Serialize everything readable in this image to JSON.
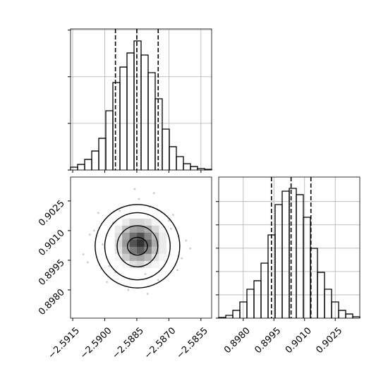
{
  "chart_data": [
    {
      "type": "histogram",
      "color": "#000000",
      "grid": true,
      "xtick_labels": false,
      "ytick_labels": false,
      "bins": [
        -2.5916,
        -2.59127,
        -2.59094,
        -2.59061,
        -2.59028,
        -2.58995,
        -2.58962,
        -2.58929,
        -2.58896,
        -2.58863,
        -2.5883,
        -2.58797,
        -2.58764,
        -2.58731,
        -2.58698,
        -2.58665,
        -2.58632,
        -2.58599,
        -2.58566,
        -2.58533,
        -2.585
      ],
      "values": [
        24,
        48,
        91,
        163,
        272,
        508,
        750,
        883,
        1004,
        1107,
        986,
        835,
        611,
        351,
        200,
        115,
        54,
        30,
        12,
        6
      ],
      "quantiles": [
        -2.5895,
        -2.5885,
        -2.5875
      ],
      "xlim": [
        -2.5916,
        -2.585
      ],
      "ylim": [
        0,
        1210
      ],
      "xticks": [
        -2.5915,
        -2.59,
        -2.5885,
        -2.587,
        -2.5855
      ],
      "yticks": [
        0,
        400,
        800,
        1200
      ]
    },
    {
      "type": "density2d",
      "point_color": "#999999",
      "xlim": [
        -2.5916,
        -2.585
      ],
      "ylim": [
        0.89657,
        0.90371
      ],
      "xticks": [
        {
          "value": -2.5915,
          "label": "−2.5915"
        },
        {
          "value": -2.59,
          "label": "−2.5900"
        },
        {
          "value": -2.5885,
          "label": "−2.5885"
        },
        {
          "value": -2.587,
          "label": "−2.5870"
        },
        {
          "value": -2.5855,
          "label": "−2.5855"
        }
      ],
      "yticks": [
        {
          "value": 0.898,
          "label": "0.8980"
        },
        0.8995,
        {
          "value": 0.901,
          "label": "0.9010"
        },
        0.9025
      ],
      "scatter": {
        "x": [
          -2.5905,
          -2.5898,
          -2.587,
          -2.5866,
          -2.5901,
          -2.5875,
          -2.5893,
          -2.5879,
          -2.591,
          -2.5862,
          -2.5889,
          -2.5884,
          -2.5896,
          -2.5872,
          -2.5907,
          -2.5868,
          -2.5881,
          -2.5899,
          -2.5877,
          -2.5892,
          -2.5864,
          -2.5903,
          -2.5886,
          -2.5874,
          -2.5895,
          -2.5869,
          -2.5908,
          -2.588,
          -2.5888,
          -2.586
        ],
        "y": [
          0.901,
          0.8992,
          0.9015,
          0.899,
          0.9003,
          0.8985,
          0.902,
          0.9022,
          0.8998,
          0.9005,
          0.898,
          0.9026,
          0.9014,
          0.8995,
          0.9008,
          0.9018,
          0.8988,
          0.8984,
          0.9029,
          0.8997,
          0.8996,
          0.9019,
          0.9031,
          0.9007,
          0.8989,
          0.9011,
          0.8994,
          0.8978,
          0.9013,
          0.9001
        ]
      },
      "density": {
        "xrange": [
          -2.58953,
          -2.58712
        ],
        "yrange": [
          0.89911,
          0.90161
        ],
        "values": [
          [
            0,
            0.1,
            0.2,
            0.2,
            0.15,
            0.05,
            0
          ],
          [
            0.1,
            0.3,
            0.45,
            0.5,
            0.4,
            0.2,
            0.05
          ],
          [
            0.15,
            0.45,
            0.7,
            0.85,
            0.6,
            0.35,
            0.1
          ],
          [
            0.2,
            0.5,
            0.85,
            1,
            0.75,
            0.4,
            0.1
          ],
          [
            0.15,
            0.4,
            0.65,
            0.8,
            0.6,
            0.3,
            0.1
          ],
          [
            0.05,
            0.25,
            0.4,
            0.45,
            0.35,
            0.15,
            0.05
          ],
          [
            0,
            0.05,
            0.15,
            0.2,
            0.1,
            0.05,
            0
          ]
        ]
      },
      "contours": [
        {
          "cx": -2.58847,
          "cy": 0.90021,
          "rx": 0.00198,
          "ry": 0.00211
        },
        {
          "cx": -2.58847,
          "cy": 0.90021,
          "rx": 0.00153,
          "ry": 0.0017
        },
        {
          "cx": -2.58847,
          "cy": 0.90021,
          "rx": 0.00095,
          "ry": 0.00104
        },
        {
          "cx": -2.58847,
          "cy": 0.90021,
          "rx": 0.00047,
          "ry": 0.00045
        }
      ]
    },
    {
      "type": "histogram",
      "color": "#000000",
      "grid": true,
      "xtick_labels": true,
      "ytick_labels": false,
      "bins": [
        0.8968,
        0.897145,
        0.89749,
        0.897835,
        0.89818,
        0.898525,
        0.89887,
        0.899215,
        0.89956,
        0.899905,
        0.90025,
        0.900595,
        0.90094,
        0.901285,
        0.90163,
        0.901975,
        0.90232,
        0.902665,
        0.90301,
        0.903355,
        0.9037
      ],
      "values": [
        6,
        24,
        67,
        139,
        248,
        321,
        472,
        714,
        974,
        1089,
        1113,
        1059,
        865,
        599,
        393,
        248,
        139,
        67,
        36,
        12
      ],
      "quantiles": [
        0.89938,
        0.90034,
        0.90131
      ],
      "xlim": [
        0.8968,
        0.9037
      ],
      "ylim": [
        0,
        1210
      ],
      "xticks": [
        {
          "value": 0.898,
          "label": "0.8980"
        },
        0.8995,
        {
          "value": 0.901,
          "label": "0.9010"
        },
        0.9025
      ],
      "yticks": [
        0,
        200,
        400,
        600,
        800,
        1000
      ]
    }
  ]
}
